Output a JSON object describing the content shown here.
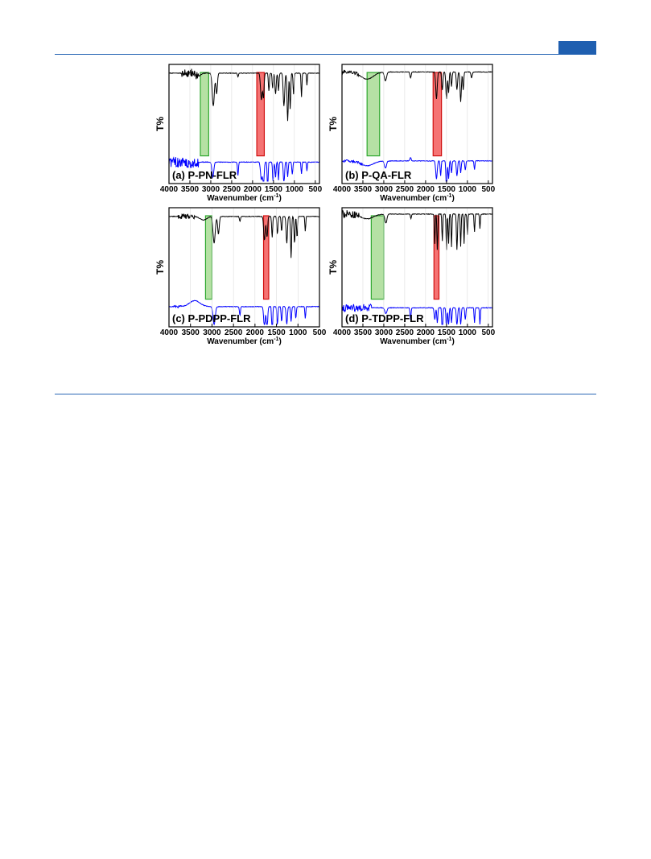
{
  "header": {
    "accent_color": "#1f5fb0"
  },
  "chart_data": [
    {
      "type": "line",
      "panel_label": "(a) P-PN-FLR",
      "xlabel": "Wavenumber (cm",
      "xlabel_sup": "-1",
      "xlabel_close": ")",
      "ylabel": "T%",
      "xlim": [
        4000,
        400
      ],
      "xticks": [
        4000,
        3500,
        3000,
        2500,
        2000,
        1500,
        1000,
        500
      ],
      "highlights": [
        {
          "color": "green",
          "x_start": 3250,
          "x_end": 3050,
          "covers": "both"
        },
        {
          "color": "red",
          "x_start": 1900,
          "x_end": 1720,
          "covers": "both"
        }
      ],
      "series": [
        {
          "color": "#000000",
          "baseline": 0.88,
          "noise_start": 3700,
          "noise_end": 3300,
          "noise_amp": 0.08,
          "peaks": [
            [
              3300,
              0.05,
              60
            ],
            [
              2940,
              0.55,
              25
            ],
            [
              2860,
              0.35,
              18
            ],
            [
              2350,
              0.06,
              12
            ],
            [
              1790,
              0.45,
              20
            ],
            [
              1740,
              0.4,
              15
            ],
            [
              1610,
              0.3,
              12
            ],
            [
              1520,
              0.25,
              12
            ],
            [
              1450,
              0.35,
              15
            ],
            [
              1380,
              0.3,
              12
            ],
            [
              1250,
              0.55,
              18
            ],
            [
              1160,
              0.8,
              15
            ],
            [
              1100,
              0.6,
              12
            ],
            [
              1020,
              0.35,
              12
            ],
            [
              830,
              0.4,
              10
            ],
            [
              700,
              0.2,
              10
            ]
          ]
        },
        {
          "color": "#0000ff",
          "baseline": 0.32,
          "noise_start": 4000,
          "noise_end": 3300,
          "noise_amp": 0.09,
          "peaks": [
            [
              3450,
              0.05,
              80
            ],
            [
              2950,
              0.25,
              22
            ],
            [
              2350,
              0.22,
              12
            ],
            [
              1790,
              0.3,
              20
            ],
            [
              1740,
              0.45,
              15
            ],
            [
              1640,
              0.85,
              10
            ],
            [
              1510,
              0.35,
              12
            ],
            [
              1450,
              0.25,
              12
            ],
            [
              1380,
              0.3,
              10
            ],
            [
              1250,
              0.35,
              15
            ],
            [
              1160,
              0.25,
              12
            ],
            [
              1050,
              0.2,
              12
            ],
            [
              830,
              0.2,
              10
            ],
            [
              700,
              0.15,
              10
            ]
          ]
        }
      ]
    },
    {
      "type": "line",
      "panel_label": "(b) P-QA-FLR",
      "xlabel": "Wavenumber (cm",
      "xlabel_sup": "-1",
      "xlabel_close": ")",
      "ylabel": "T%",
      "xlim": [
        4000,
        400
      ],
      "xticks": [
        4000,
        3500,
        3000,
        2500,
        2000,
        1500,
        1000,
        500
      ],
      "highlights": [
        {
          "color": "green",
          "x_start": 3400,
          "x_end": 3100,
          "covers": "both"
        },
        {
          "color": "red",
          "x_start": 1820,
          "x_end": 1620,
          "covers": "both"
        }
      ],
      "series": [
        {
          "color": "#000000",
          "baseline": 0.9,
          "noise_start": 4000,
          "noise_end": 3600,
          "noise_amp": 0.03,
          "peaks": [
            [
              3400,
              0.12,
              150
            ],
            [
              2960,
              0.15,
              25
            ],
            [
              2360,
              0.1,
              15
            ],
            [
              1740,
              0.45,
              18
            ],
            [
              1600,
              0.3,
              15
            ],
            [
              1500,
              0.45,
              15
            ],
            [
              1450,
              0.35,
              12
            ],
            [
              1380,
              0.25,
              12
            ],
            [
              1250,
              0.3,
              15
            ],
            [
              1160,
              0.5,
              15
            ],
            [
              1100,
              0.3,
              12
            ],
            [
              900,
              0.1,
              15
            ]
          ]
        },
        {
          "color": "#0000ff",
          "baseline": 0.34,
          "noise_start": 4000,
          "noise_end": 3500,
          "noise_amp": 0.02,
          "peaks": [
            [
              3400,
              0.08,
              150
            ],
            [
              2960,
              0.12,
              25
            ],
            [
              2360,
              -0.06,
              15
            ],
            [
              1740,
              0.3,
              18
            ],
            [
              1640,
              0.25,
              12
            ],
            [
              1500,
              0.6,
              12
            ],
            [
              1450,
              0.3,
              12
            ],
            [
              1380,
              0.2,
              12
            ],
            [
              1250,
              0.25,
              15
            ],
            [
              1160,
              0.2,
              12
            ],
            [
              1050,
              0.15,
              12
            ],
            [
              830,
              0.15,
              10
            ]
          ]
        }
      ]
    },
    {
      "type": "line",
      "panel_label": "(c) P-PDPP-FLR",
      "xlabel": "Wavenumber (cm",
      "xlabel_sup": "-1",
      "xlabel_close": ")",
      "ylabel": "T%",
      "xlim": [
        4000,
        500
      ],
      "xticks": [
        4000,
        3500,
        3000,
        2500,
        2000,
        1500,
        1000,
        500
      ],
      "highlights": [
        {
          "color": "green",
          "x_start": 3150,
          "x_end": 3000,
          "covers": "both"
        },
        {
          "color": "red",
          "x_start": 1800,
          "x_end": 1680,
          "covers": "both"
        }
      ],
      "series": [
        {
          "color": "#000000",
          "baseline": 0.88,
          "noise_start": 3800,
          "noise_end": 3400,
          "noise_amp": 0.04,
          "peaks": [
            [
              3200,
              0.06,
              80
            ],
            [
              2950,
              0.45,
              25
            ],
            [
              2850,
              0.3,
              18
            ],
            [
              2350,
              0.08,
              12
            ],
            [
              1780,
              0.4,
              18
            ],
            [
              1720,
              0.35,
              15
            ],
            [
              1600,
              0.35,
              12
            ],
            [
              1480,
              0.3,
              12
            ],
            [
              1380,
              0.25,
              12
            ],
            [
              1260,
              0.45,
              15
            ],
            [
              1160,
              0.7,
              12
            ],
            [
              1080,
              0.45,
              12
            ],
            [
              1020,
              0.35,
              12
            ],
            [
              830,
              0.25,
              10
            ]
          ]
        },
        {
          "color": "#0000ff",
          "baseline": 0.3,
          "noise_start": 3900,
          "noise_end": 3700,
          "noise_amp": 0.02,
          "peaks": [
            [
              3400,
              -0.1,
              120
            ],
            [
              2950,
              0.3,
              25
            ],
            [
              2350,
              0.15,
              12
            ],
            [
              1780,
              0.35,
              18
            ],
            [
              1720,
              0.4,
              15
            ],
            [
              1600,
              0.9,
              10
            ],
            [
              1480,
              0.3,
              12
            ],
            [
              1380,
              0.25,
              12
            ],
            [
              1260,
              0.3,
              15
            ],
            [
              1160,
              0.25,
              12
            ],
            [
              1050,
              0.2,
              12
            ],
            [
              830,
              0.2,
              10
            ]
          ]
        }
      ]
    },
    {
      "type": "line",
      "panel_label": "(d) P-TDPP-FLR",
      "xlabel": "Wavenumber (cm",
      "xlabel_sup": "-1",
      "xlabel_close": ")",
      "ylabel": "T%",
      "xlim": [
        4000,
        400
      ],
      "xticks": [
        4000,
        3500,
        3000,
        2500,
        2000,
        1500,
        1000,
        500
      ],
      "highlights": [
        {
          "color": "green",
          "x_start": 3300,
          "x_end": 3000,
          "covers": "both"
        },
        {
          "color": "red",
          "x_start": 1800,
          "x_end": 1680,
          "covers": "both"
        }
      ],
      "series": [
        {
          "color": "#000000",
          "baseline": 0.92,
          "noise_start": 4000,
          "noise_end": 3600,
          "noise_amp": 0.06,
          "peaks": [
            [
              3400,
              0.08,
              150
            ],
            [
              2950,
              0.15,
              25
            ],
            [
              2350,
              0.08,
              12
            ],
            [
              1780,
              0.5,
              10
            ],
            [
              1720,
              0.6,
              10
            ],
            [
              1600,
              0.45,
              10
            ],
            [
              1500,
              0.6,
              10
            ],
            [
              1450,
              0.5,
              10
            ],
            [
              1380,
              0.55,
              10
            ],
            [
              1250,
              0.6,
              12
            ],
            [
              1160,
              0.55,
              10
            ],
            [
              1080,
              0.5,
              10
            ],
            [
              1000,
              0.35,
              10
            ],
            [
              830,
              0.3,
              10
            ],
            [
              700,
              0.25,
              10
            ]
          ]
        },
        {
          "color": "#0000ff",
          "baseline": 0.28,
          "noise_start": 4000,
          "noise_end": 3300,
          "noise_amp": 0.06,
          "peaks": [
            [
              2950,
              0.1,
              25
            ],
            [
              2360,
              0.2,
              12
            ],
            [
              1780,
              0.2,
              15
            ],
            [
              1720,
              0.25,
              12
            ],
            [
              1600,
              0.85,
              10
            ],
            [
              1500,
              0.35,
              12
            ],
            [
              1450,
              0.3,
              12
            ],
            [
              1380,
              0.25,
              12
            ],
            [
              1250,
              0.3,
              15
            ],
            [
              1160,
              0.3,
              12
            ],
            [
              1050,
              0.2,
              12
            ],
            [
              830,
              0.25,
              10
            ],
            [
              700,
              0.3,
              10
            ]
          ]
        }
      ]
    }
  ]
}
